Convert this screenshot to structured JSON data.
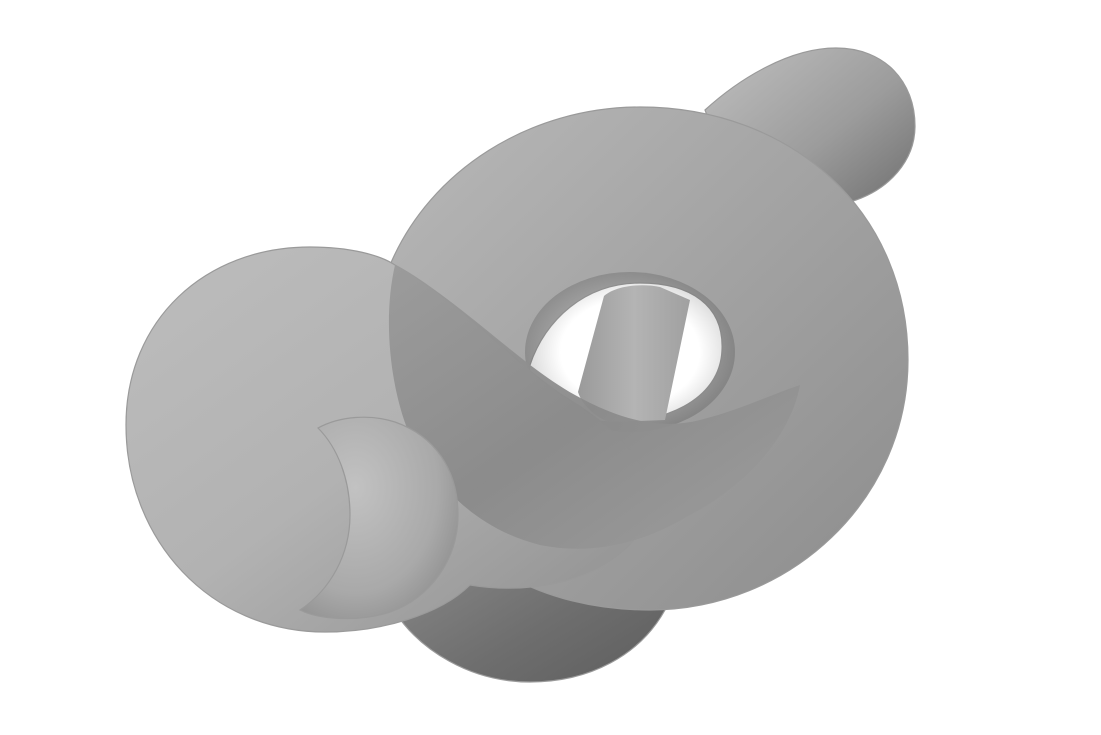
{
  "scene": {
    "subject": "knot-tube",
    "background_color": "#ffffff",
    "surface_colors": {
      "light": "#bdbdbd",
      "mid": "#a2a2a2",
      "dark": "#6f6f6f",
      "outline": "#9a9a9a"
    },
    "shading": "smooth-gray"
  }
}
